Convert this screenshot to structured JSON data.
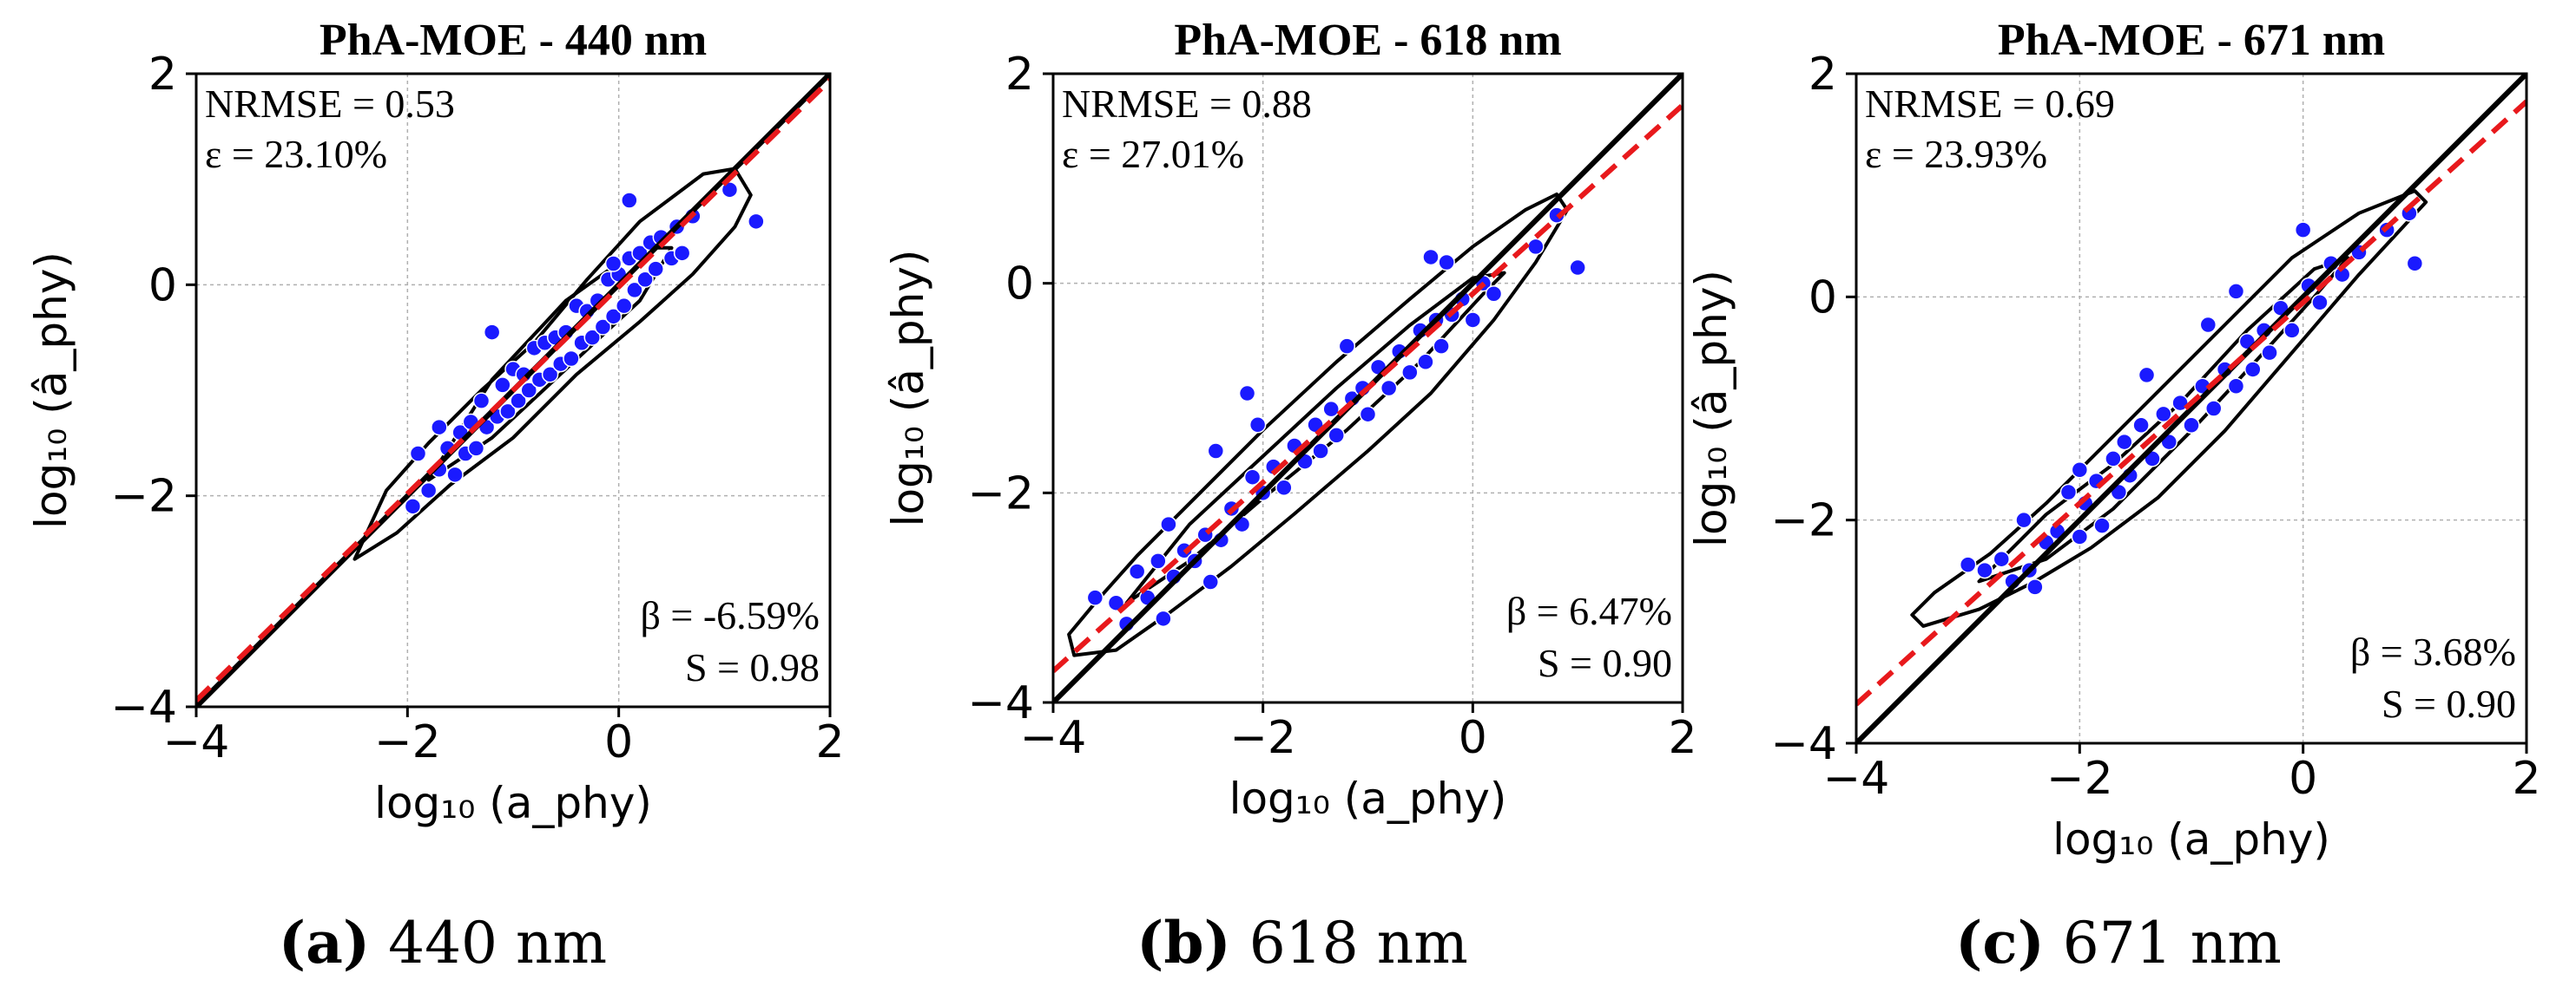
{
  "chart_data": [
    {
      "type": "scatter",
      "title": "PhA-MOE - 440 nm",
      "xlabel": "log₁₀ (a_phy)",
      "ylabel": "log₁₀ (â_phy)",
      "xlim": [
        -4,
        2
      ],
      "ylim": [
        -4,
        2
      ],
      "xticks": [
        -4,
        -2,
        0,
        2
      ],
      "yticks": [
        -4,
        -2,
        0,
        2
      ],
      "grid": true,
      "metrics": {
        "nrmse": "NRMSE = 0.53",
        "epsilon": "ε = 23.10%",
        "beta": "β = -6.59%",
        "s": "S = 0.98"
      },
      "identity_line": {
        "name": "1:1 line",
        "color": "#000000",
        "slope": 1,
        "intercept": 0
      },
      "fit_line": {
        "name": "regression fit",
        "color": "#e8191c",
        "style": "dashed",
        "slope": 0.98,
        "intercept": -0.02
      },
      "points_color": "#1a1aff",
      "contours": [
        [
          [
            -2.5,
            -2.6
          ],
          [
            -2.1,
            -2.35
          ],
          [
            -1.6,
            -1.9
          ],
          [
            -1.0,
            -1.45
          ],
          [
            -0.4,
            -0.85
          ],
          [
            0.2,
            -0.35
          ],
          [
            0.7,
            0.1
          ],
          [
            1.1,
            0.55
          ],
          [
            1.25,
            0.85
          ],
          [
            1.1,
            1.1
          ],
          [
            0.8,
            1.05
          ],
          [
            0.2,
            0.6
          ],
          [
            -0.3,
            0.05
          ],
          [
            -0.8,
            -0.55
          ],
          [
            -1.3,
            -1.0
          ],
          [
            -1.8,
            -1.5
          ],
          [
            -2.2,
            -1.95
          ],
          [
            -2.5,
            -2.6
          ]
        ],
        [
          [
            -1.8,
            -1.85
          ],
          [
            -1.2,
            -1.45
          ],
          [
            -0.5,
            -0.8
          ],
          [
            0.2,
            -0.15
          ],
          [
            0.5,
            0.35
          ],
          [
            0.2,
            0.35
          ],
          [
            -0.5,
            -0.15
          ],
          [
            -1.2,
            -0.9
          ],
          [
            -1.8,
            -1.85
          ]
        ]
      ],
      "points": [
        [
          -1.95,
          -2.1
        ],
        [
          -1.9,
          -1.6
        ],
        [
          -1.8,
          -1.95
        ],
        [
          -1.7,
          -1.75
        ],
        [
          -1.62,
          -1.55
        ],
        [
          -1.55,
          -1.8
        ],
        [
          -1.5,
          -1.4
        ],
        [
          -1.45,
          -1.6
        ],
        [
          -1.4,
          -1.3
        ],
        [
          -1.35,
          -1.55
        ],
        [
          -1.3,
          -1.1
        ],
        [
          -1.25,
          -1.35
        ],
        [
          -1.2,
          -0.45
        ],
        [
          -1.15,
          -1.25
        ],
        [
          -1.1,
          -0.95
        ],
        [
          -1.05,
          -1.2
        ],
        [
          -1.0,
          -0.8
        ],
        [
          -0.95,
          -1.1
        ],
        [
          -0.9,
          -0.85
        ],
        [
          -0.85,
          -1.0
        ],
        [
          -0.8,
          -0.6
        ],
        [
          -0.75,
          -0.9
        ],
        [
          -0.7,
          -0.55
        ],
        [
          -0.65,
          -0.85
        ],
        [
          -0.6,
          -0.5
        ],
        [
          -0.55,
          -0.75
        ],
        [
          -0.5,
          -0.45
        ],
        [
          -0.45,
          -0.7
        ],
        [
          -0.4,
          -0.2
        ],
        [
          -0.35,
          -0.55
        ],
        [
          -0.3,
          -0.25
        ],
        [
          -0.25,
          -0.5
        ],
        [
          -0.2,
          -0.15
        ],
        [
          -0.15,
          -0.4
        ],
        [
          -0.1,
          0.05
        ],
        [
          -0.05,
          -0.3
        ],
        [
          0.0,
          0.1
        ],
        [
          0.05,
          -0.2
        ],
        [
          0.1,
          0.25
        ],
        [
          0.15,
          -0.05
        ],
        [
          0.2,
          0.3
        ],
        [
          0.25,
          0.05
        ],
        [
          0.3,
          0.4
        ],
        [
          0.35,
          0.15
        ],
        [
          0.4,
          0.45
        ],
        [
          0.5,
          0.25
        ],
        [
          0.55,
          0.55
        ],
        [
          0.6,
          0.3
        ],
        [
          0.7,
          0.65
        ],
        [
          0.1,
          0.8
        ],
        [
          1.3,
          0.6
        ],
        [
          1.05,
          0.9
        ],
        [
          -1.7,
          -1.35
        ],
        [
          -0.05,
          0.2
        ]
      ]
    },
    {
      "type": "scatter",
      "title": "PhA-MOE - 618 nm",
      "xlabel": "log₁₀ (a_phy)",
      "ylabel": "log₁₀ (â_phy)",
      "xlim": [
        -4,
        2
      ],
      "ylim": [
        -4,
        2
      ],
      "xticks": [
        -4,
        -2,
        0,
        2
      ],
      "yticks": [
        -4,
        -2,
        0,
        2
      ],
      "grid": true,
      "metrics": {
        "nrmse": "NRMSE = 0.88",
        "epsilon": "ε = 27.01%",
        "beta": "β = 6.47%",
        "s": "S = 0.90"
      },
      "identity_line": {
        "name": "1:1 line",
        "color": "#000000",
        "slope": 1,
        "intercept": 0
      },
      "fit_line": {
        "name": "regression fit",
        "color": "#e8191c",
        "style": "dashed",
        "slope": 0.9,
        "intercept": -0.1
      },
      "points_color": "#1a1aff",
      "contours": [
        [
          [
            -3.8,
            -3.55
          ],
          [
            -3.4,
            -3.5
          ],
          [
            -2.9,
            -3.15
          ],
          [
            -2.3,
            -2.7
          ],
          [
            -1.7,
            -2.2
          ],
          [
            -1.0,
            -1.6
          ],
          [
            -0.4,
            -1.05
          ],
          [
            0.2,
            -0.35
          ],
          [
            0.6,
            0.2
          ],
          [
            0.9,
            0.7
          ],
          [
            0.8,
            0.85
          ],
          [
            0.5,
            0.7
          ],
          [
            0.0,
            0.35
          ],
          [
            -0.6,
            -0.15
          ],
          [
            -1.3,
            -0.75
          ],
          [
            -2.0,
            -1.4
          ],
          [
            -2.6,
            -2.0
          ],
          [
            -3.2,
            -2.6
          ],
          [
            -3.6,
            -3.05
          ],
          [
            -3.85,
            -3.35
          ],
          [
            -3.8,
            -3.55
          ]
        ],
        [
          [
            -3.3,
            -3.05
          ],
          [
            -2.7,
            -2.65
          ],
          [
            -2.0,
            -2.05
          ],
          [
            -1.2,
            -1.4
          ],
          [
            -0.5,
            -0.75
          ],
          [
            0.1,
            -0.1
          ],
          [
            0.3,
            0.1
          ],
          [
            0.0,
            0.05
          ],
          [
            -0.6,
            -0.4
          ],
          [
            -1.3,
            -1.0
          ],
          [
            -2.0,
            -1.65
          ],
          [
            -2.7,
            -2.3
          ],
          [
            -3.3,
            -3.05
          ]
        ]
      ],
      "points": [
        [
          -3.6,
          -3.0
        ],
        [
          -3.4,
          -3.05
        ],
        [
          -3.2,
          -2.75
        ],
        [
          -3.1,
          -3.0
        ],
        [
          -3.0,
          -2.65
        ],
        [
          -2.95,
          -3.2
        ],
        [
          -2.9,
          -2.3
        ],
        [
          -2.85,
          -2.8
        ],
        [
          -2.75,
          -2.55
        ],
        [
          -2.65,
          -2.65
        ],
        [
          -2.55,
          -2.4
        ],
        [
          -2.5,
          -2.85
        ],
        [
          -2.45,
          -1.6
        ],
        [
          -2.4,
          -2.45
        ],
        [
          -2.3,
          -2.15
        ],
        [
          -2.2,
          -2.3
        ],
        [
          -2.15,
          -1.05
        ],
        [
          -2.1,
          -1.85
        ],
        [
          -2.05,
          -1.35
        ],
        [
          -2.0,
          -2.0
        ],
        [
          -1.9,
          -1.75
        ],
        [
          -1.8,
          -1.95
        ],
        [
          -1.7,
          -1.55
        ],
        [
          -1.6,
          -1.7
        ],
        [
          -1.5,
          -1.35
        ],
        [
          -1.45,
          -1.6
        ],
        [
          -1.35,
          -1.2
        ],
        [
          -1.3,
          -1.45
        ],
        [
          -1.2,
          -0.6
        ],
        [
          -1.15,
          -1.1
        ],
        [
          -1.05,
          -1.0
        ],
        [
          -1.0,
          -1.25
        ],
        [
          -0.9,
          -0.8
        ],
        [
          -0.8,
          -1.0
        ],
        [
          -0.7,
          -0.65
        ],
        [
          -0.6,
          -0.85
        ],
        [
          -0.5,
          -0.45
        ],
        [
          -0.45,
          -0.75
        ],
        [
          -0.35,
          -0.35
        ],
        [
          -0.3,
          -0.6
        ],
        [
          -0.25,
          0.2
        ],
        [
          -0.2,
          -0.3
        ],
        [
          -0.1,
          -0.15
        ],
        [
          0.0,
          -0.35
        ],
        [
          0.1,
          0.0
        ],
        [
          0.2,
          -0.1
        ],
        [
          0.6,
          0.35
        ],
        [
          0.8,
          0.65
        ],
        [
          1.0,
          0.15
        ],
        [
          -3.3,
          -3.25
        ],
        [
          -0.4,
          0.25
        ]
      ]
    },
    {
      "type": "scatter",
      "title": "PhA-MOE - 671 nm",
      "xlabel": "log₁₀ (a_phy)",
      "ylabel": "log₁₀ (â_phy)",
      "xlim": [
        -4,
        2
      ],
      "ylim": [
        -4,
        2
      ],
      "xticks": [
        -4,
        -2,
        0,
        2
      ],
      "yticks": [
        -4,
        -2,
        0,
        2
      ],
      "grid": true,
      "metrics": {
        "nrmse": "NRMSE = 0.69",
        "epsilon": "ε = 23.93%",
        "beta": "β = 3.68%",
        "s": "S = 0.90"
      },
      "identity_line": {
        "name": "1:1 line",
        "color": "#000000",
        "slope": 1,
        "intercept": 0
      },
      "fit_line": {
        "name": "regression fit",
        "color": "#e8191c",
        "style": "dashed",
        "slope": 0.9,
        "intercept": -0.05
      },
      "points_color": "#1a1aff",
      "contours": [
        [
          [
            -3.4,
            -2.95
          ],
          [
            -2.9,
            -2.8
          ],
          [
            -2.4,
            -2.55
          ],
          [
            -1.9,
            -2.25
          ],
          [
            -1.3,
            -1.8
          ],
          [
            -0.7,
            -1.2
          ],
          [
            -0.1,
            -0.5
          ],
          [
            0.5,
            0.2
          ],
          [
            1.1,
            0.85
          ],
          [
            1.0,
            0.95
          ],
          [
            0.5,
            0.75
          ],
          [
            -0.1,
            0.35
          ],
          [
            -0.7,
            -0.25
          ],
          [
            -1.3,
            -0.85
          ],
          [
            -1.8,
            -1.35
          ],
          [
            -2.3,
            -1.85
          ],
          [
            -2.8,
            -2.3
          ],
          [
            -3.3,
            -2.65
          ],
          [
            -3.5,
            -2.85
          ],
          [
            -3.4,
            -2.95
          ]
        ],
        [
          [
            -2.9,
            -2.55
          ],
          [
            -2.3,
            -2.35
          ],
          [
            -1.7,
            -1.9
          ],
          [
            -1.0,
            -1.2
          ],
          [
            -0.4,
            -0.55
          ],
          [
            0.1,
            0.0
          ],
          [
            0.4,
            0.35
          ],
          [
            0.1,
            0.25
          ],
          [
            -0.5,
            -0.3
          ],
          [
            -1.1,
            -0.95
          ],
          [
            -1.7,
            -1.5
          ],
          [
            -2.3,
            -1.95
          ],
          [
            -2.9,
            -2.55
          ]
        ]
      ],
      "points": [
        [
          -3.0,
          -2.4
        ],
        [
          -2.85,
          -2.45
        ],
        [
          -2.7,
          -2.35
        ],
        [
          -2.6,
          -2.55
        ],
        [
          -2.5,
          -2.0
        ],
        [
          -2.45,
          -2.45
        ],
        [
          -2.4,
          -2.6
        ],
        [
          -2.3,
          -2.2
        ],
        [
          -2.2,
          -2.1
        ],
        [
          -2.1,
          -1.75
        ],
        [
          -2.0,
          -2.15
        ],
        [
          -1.95,
          -1.85
        ],
        [
          -1.85,
          -1.65
        ],
        [
          -1.8,
          -2.05
        ],
        [
          -1.7,
          -1.45
        ],
        [
          -1.65,
          -1.75
        ],
        [
          -1.6,
          -1.3
        ],
        [
          -1.55,
          -1.6
        ],
        [
          -1.45,
          -1.15
        ],
        [
          -1.4,
          -0.7
        ],
        [
          -1.35,
          -1.45
        ],
        [
          -1.25,
          -1.05
        ],
        [
          -1.2,
          -1.3
        ],
        [
          -1.1,
          -0.95
        ],
        [
          -1.0,
          -1.15
        ],
        [
          -0.9,
          -0.8
        ],
        [
          -0.85,
          -0.25
        ],
        [
          -0.8,
          -1.0
        ],
        [
          -0.7,
          -0.65
        ],
        [
          -0.6,
          -0.8
        ],
        [
          -0.5,
          -0.4
        ],
        [
          -0.45,
          -0.65
        ],
        [
          -0.35,
          -0.3
        ],
        [
          -0.3,
          -0.5
        ],
        [
          -0.2,
          -0.1
        ],
        [
          -0.1,
          -0.3
        ],
        [
          0.0,
          0.6
        ],
        [
          0.05,
          0.1
        ],
        [
          0.15,
          -0.05
        ],
        [
          0.25,
          0.3
        ],
        [
          0.35,
          0.2
        ],
        [
          0.5,
          0.4
        ],
        [
          0.75,
          0.6
        ],
        [
          0.95,
          0.75
        ],
        [
          1.0,
          0.3
        ],
        [
          -2.0,
          -1.55
        ],
        [
          -0.6,
          0.05
        ]
      ]
    }
  ],
  "captions": [
    {
      "label": "(a)",
      "text": "440 nm"
    },
    {
      "label": "(b)",
      "text": "618 nm"
    },
    {
      "label": "(c)",
      "text": "671 nm"
    }
  ]
}
